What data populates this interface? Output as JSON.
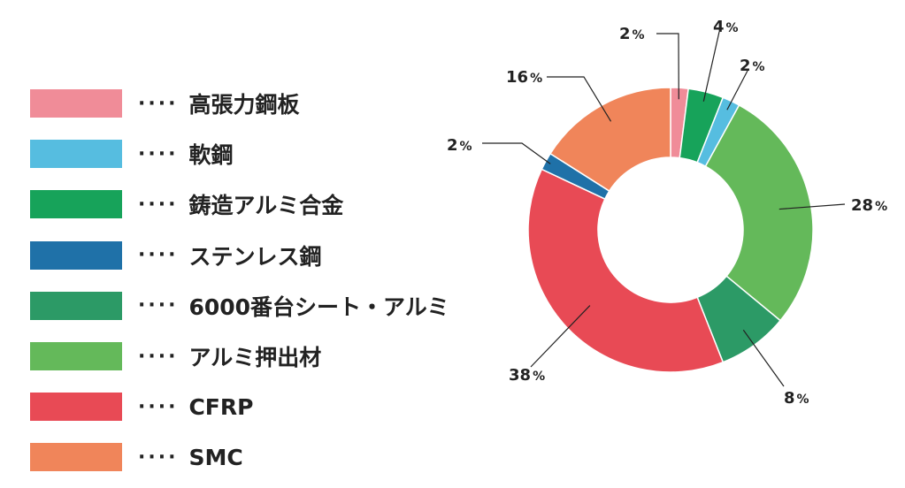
{
  "chart_data": {
    "type": "pie",
    "variant": "donut",
    "legend_placement": "left",
    "legend_separator": "····",
    "unit": "%",
    "categories": [
      "高張力鋼板",
      "軟鋼",
      "鋳造アルミ合金",
      "ステンレス鋼",
      "6000番台シート・アルミ",
      "アルミ押出材",
      "CFRP",
      "SMC"
    ],
    "values": [
      2,
      4,
      2,
      28,
      8,
      38,
      2,
      16
    ],
    "slices": [
      {
        "label": "高張力鋼板",
        "value": 2,
        "color": "#f08c98"
      },
      {
        "label": "軟鋼",
        "value": 4,
        "color": "#17a35a"
      },
      {
        "label": "鋳造アルミ合金",
        "value": 2,
        "color": "#56bde0"
      },
      {
        "label": "ステンレス鋼",
        "value": 28,
        "color": "#64b95a"
      },
      {
        "label": "6000番台シート・アルミ",
        "value": 8,
        "color": "#2c9a66"
      },
      {
        "label": "アルミ押出材",
        "value": 38,
        "color": "#e84a55"
      },
      {
        "label": "CFRP",
        "value": 2,
        "color": "#1f71a8"
      },
      {
        "label": "SMC",
        "value": 16,
        "color": "#f0855a"
      }
    ],
    "legend": [
      {
        "label": "高張力鋼板",
        "color": "#f08c98"
      },
      {
        "label": "軟鋼",
        "color": "#56bde0"
      },
      {
        "label": "鋳造アルミ合金",
        "color": "#17a35a"
      },
      {
        "label": "ステンレス鋼",
        "color": "#1f71a8"
      },
      {
        "label": "6000番台シート・アルミ",
        "color": "#2c9a66"
      },
      {
        "label": "アルミ押出材",
        "color": "#64b95a"
      },
      {
        "label": "CFRP",
        "color": "#e84a55"
      },
      {
        "label": "SMC",
        "color": "#f0855a"
      }
    ]
  }
}
